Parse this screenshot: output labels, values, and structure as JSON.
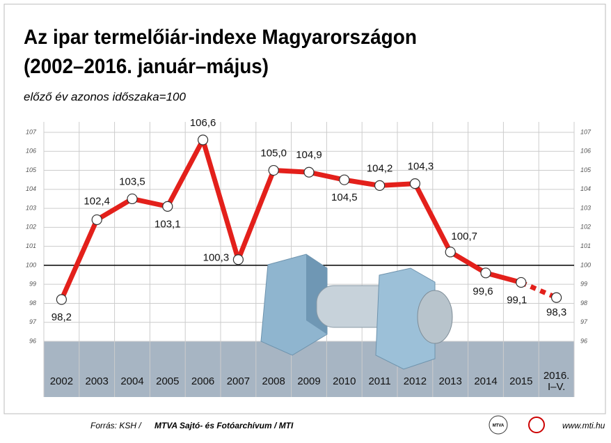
{
  "chart_data": {
    "type": "line",
    "title_lines": [
      "Az ipar termelőiár-indexe Magyarországon",
      "(2002–2016. január–május)"
    ],
    "subtitle": "előző év azonos időszaka=100",
    "categories": [
      "2002",
      "2003",
      "2004",
      "2005",
      "2006",
      "2007",
      "2008",
      "2009",
      "2010",
      "2011",
      "2012",
      "2013",
      "2014",
      "2015",
      "2016. I–V."
    ],
    "series": [
      {
        "color": "#e3201b",
        "values": [
          98.2,
          102.4,
          103.5,
          103.1,
          106.6,
          100.3,
          105.0,
          104.9,
          104.5,
          104.2,
          104.3,
          100.7,
          99.6,
          99.1,
          98.3
        ],
        "value_labels": [
          "98,2",
          "102,4",
          "103,5",
          "103,1",
          "106,6",
          "100,3",
          "105,0",
          "104,9",
          "104,5",
          "104,2",
          "104,3",
          "100,7",
          "99,6",
          "99,1",
          "98,3"
        ]
      }
    ],
    "last_segment_dashed": true,
    "reference_line": 100,
    "ylim": [
      96,
      107
    ],
    "yticks": [
      96,
      97,
      98,
      99,
      100,
      101,
      102,
      103,
      104,
      105,
      106,
      107
    ],
    "grid": true,
    "footer": {
      "source": "Forrás: KSH /",
      "agency": "MTVA Sajtó- és Fotóarchívum / MTI",
      "logo": "MTVA",
      "url": "www.mti.hu"
    }
  }
}
